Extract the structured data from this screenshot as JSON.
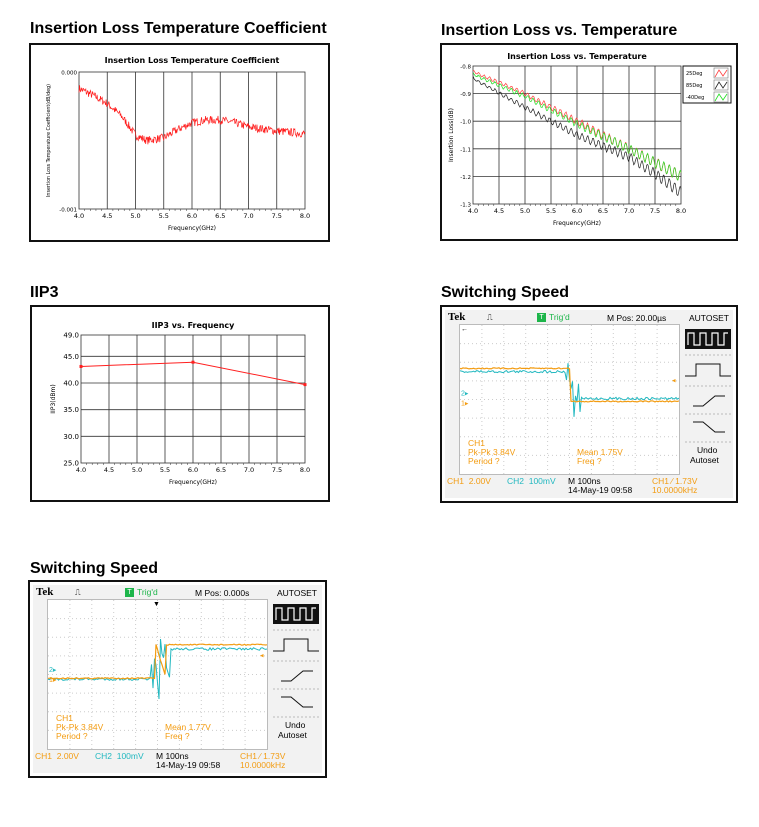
{
  "headings": [
    "Insertion Loss Temperature Coefficient",
    "Insertion Loss vs. Temperature",
    "IIP3",
    "Switching Speed",
    "Switching Speed"
  ],
  "chart_data": [
    {
      "type": "line",
      "title": "Insertion Loss Temperature Coefficient",
      "xlabel": "Frequency(GHz)",
      "ylabel": "Insertion Loss Temperature Coefficient(dB/deg)",
      "xlim": [
        4.0,
        8.0
      ],
      "ylim": [
        -0.001,
        0.0
      ],
      "x_ticks": [
        "4.0",
        "4.5",
        "5.0",
        "5.5",
        "6.0",
        "6.5",
        "7.0",
        "7.5",
        "8.0"
      ],
      "y_ticks": [
        "0.000",
        "-0.001"
      ],
      "grid": "vertical",
      "series": [
        {
          "name": "coefficient",
          "color": "#ff1a1a",
          "x": [
            4.0,
            4.25,
            4.5,
            4.75,
            5.0,
            5.2,
            5.5,
            5.75,
            6.0,
            6.25,
            6.5,
            6.75,
            7.0,
            7.5,
            8.0
          ],
          "y": [
            -0.00012,
            -0.00017,
            -0.00023,
            -0.00032,
            -0.00046,
            -0.0005,
            -0.00048,
            -0.00042,
            -0.00037,
            -0.00035,
            -0.00035,
            -0.00037,
            -0.0004,
            -0.00043,
            -0.00045
          ]
        }
      ]
    },
    {
      "type": "line",
      "title": "Insertion Loss vs. Temperature",
      "xlabel": "Frequency(GHz)",
      "ylabel": "Insertion Loss(dB)",
      "xlim": [
        4.0,
        8.0
      ],
      "ylim": [
        -1.3,
        -0.8
      ],
      "x_ticks": [
        "4.0",
        "4.5",
        "5.0",
        "5.5",
        "6.0",
        "6.5",
        "7.0",
        "7.5",
        "8.0"
      ],
      "y_ticks": [
        "-0.8",
        "-0.9",
        "-1.0",
        "-1.1",
        "-1.2",
        "-1.3"
      ],
      "grid": "both",
      "legend": "right",
      "series": [
        {
          "name": "25Deg",
          "color": "#ff4040",
          "x": [
            4.0,
            5.0,
            6.0,
            7.0,
            8.0
          ],
          "y": [
            -0.82,
            -0.9,
            -1.0,
            -1.1,
            -1.2
          ]
        },
        {
          "name": "85Deg",
          "color": "#222222",
          "x": [
            4.0,
            5.0,
            6.0,
            7.0,
            7.5,
            8.0
          ],
          "y": [
            -0.845,
            -0.95,
            -1.05,
            -1.13,
            -1.19,
            -1.26
          ]
        },
        {
          "name": "-40Deg",
          "color": "#22dd22",
          "x": [
            4.0,
            5.0,
            6.0,
            7.0,
            8.0
          ],
          "y": [
            -0.83,
            -0.91,
            -1.01,
            -1.1,
            -1.2
          ]
        }
      ]
    },
    {
      "type": "line",
      "title": "IIP3 vs. Frequency",
      "xlabel": "Frequency(GHz)",
      "ylabel": "IIP3(dBm)",
      "xlim": [
        4.0,
        8.0
      ],
      "ylim": [
        25.0,
        49.0
      ],
      "x_ticks": [
        "4.0",
        "4.5",
        "5.0",
        "5.5",
        "6.0",
        "6.5",
        "7.0",
        "7.5",
        "8.0"
      ],
      "y_ticks": [
        "49.0",
        "45.0",
        "40.0",
        "35.0",
        "30.0",
        "25.0"
      ],
      "grid": "both",
      "series": [
        {
          "name": "IIP3",
          "color": "#ff2020",
          "x": [
            4.0,
            6.0,
            8.0
          ],
          "y": [
            43.1,
            43.9,
            39.7
          ]
        }
      ]
    }
  ],
  "scopes": [
    {
      "brand": "Tek",
      "trig": "Trig'd",
      "trig_icon": "T",
      "mpos": "M Pos: 20.00µs",
      "autoset": "AUTOSET",
      "undo": "Undo",
      "undo2": "Autoset",
      "ch1_label": "CH1",
      "pkpk": "Pk-Pk 3.84V",
      "period": "Period ?",
      "mean": "Mean 1.75V",
      "freq": "Freq ?",
      "ch1_scale": "CH1  2.00V",
      "ch2_scale": "CH2  100mV",
      "timebase": "M 100ns",
      "date": "14-May-19 09:58",
      "trig_level": "CH1 ∕ 1.73V",
      "trig_freq": "10.0000kHz",
      "edge": "falling",
      "ch1_high_div": 2.33,
      "ch1_low_div": 4.1,
      "ch2_high_div": 2.5,
      "ch2_low_div": 3.95,
      "edge_div": 5.04,
      "colors": {
        "ch1": "#f39c12",
        "ch2": "#22b8c0"
      }
    },
    {
      "brand": "Tek",
      "trig": "Trig'd",
      "trig_icon": "T",
      "mpos": "M Pos: 0.000s",
      "autoset": "AUTOSET",
      "undo": "Undo",
      "undo2": "Autoset",
      "ch1_label": "CH1",
      "pkpk": "Pk-Pk 3.84V",
      "period": "Period ?",
      "mean": "Mean 1.77V",
      "freq": "Freq ?",
      "ch1_scale": "CH1  2.00V",
      "ch2_scale": "CH2  100mV",
      "timebase": "M 100ns",
      "date": "14-May-19 09:58",
      "trig_level": "CH1 ∕ 1.73V",
      "trig_freq": "10.0000kHz",
      "edge": "rising",
      "ch1_high_div": 2.4,
      "ch1_low_div": 4.2,
      "ch2_high_div": 2.63,
      "ch2_low_div": 4.25,
      "edge_div": 4.93,
      "colors": {
        "ch1": "#f39c12",
        "ch2": "#22b8c0"
      }
    }
  ]
}
